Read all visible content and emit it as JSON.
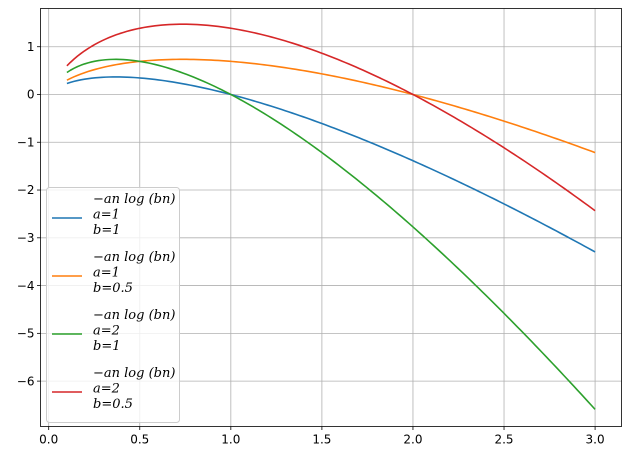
{
  "chart_data": {
    "type": "line",
    "title": "",
    "xlabel": "",
    "ylabel": "",
    "xlim": [
      -0.045,
      3.145
    ],
    "ylim": [
      -6.95,
      1.8
    ],
    "grid": true,
    "legend_placement": "lower-left",
    "x_ticks": [
      0.0,
      0.5,
      1.0,
      1.5,
      2.0,
      2.5,
      3.0
    ],
    "x_tick_labels": [
      "0.0",
      "0.5",
      "1.0",
      "1.5",
      "2.0",
      "2.5",
      "3.0"
    ],
    "y_ticks": [
      1,
      0,
      -1,
      -2,
      -3,
      -4,
      -5,
      -6
    ],
    "y_tick_labels": [
      "1",
      "0",
      "−1",
      "−2",
      "−3",
      "−4",
      "−5",
      "−6"
    ],
    "series": [
      {
        "name": [
          "−an log (bn)",
          "a=1",
          "b=1"
        ],
        "color": "#1f77b4",
        "a": 1,
        "b": 1,
        "x": [
          0.1,
          0.25,
          0.5,
          0.75,
          1.0,
          1.25,
          1.5,
          1.75,
          2.0,
          2.25,
          2.5,
          2.75,
          3.0
        ],
        "y": [
          0.23,
          0.347,
          0.347,
          0.216,
          0.0,
          -0.279,
          -0.608,
          -0.979,
          -1.386,
          -1.825,
          -2.291,
          -2.782,
          -3.296
        ]
      },
      {
        "name": [
          "−an log (bn)",
          "a=1",
          "b=0.5"
        ],
        "color": "#ff7f0e",
        "a": 1,
        "b": 0.5,
        "x": [
          0.1,
          0.25,
          0.5,
          0.75,
          1.0,
          1.25,
          1.5,
          1.75,
          2.0,
          2.25,
          2.5,
          2.75,
          3.0
        ],
        "y": [
          0.3,
          0.52,
          0.693,
          0.736,
          0.693,
          0.587,
          0.432,
          0.234,
          0.0,
          -0.265,
          -0.558,
          -0.876,
          -1.216
        ]
      },
      {
        "name": [
          "−an log (bn)",
          "a=2",
          "b=1"
        ],
        "color": "#2ca02c",
        "a": 2,
        "b": 1,
        "x": [
          0.1,
          0.25,
          0.5,
          0.75,
          1.0,
          1.25,
          1.5,
          1.75,
          2.0,
          2.25,
          2.5,
          2.75,
          3.0
        ],
        "y": [
          0.461,
          0.693,
          0.693,
          0.432,
          0.0,
          -0.558,
          -1.216,
          -1.959,
          -2.773,
          -3.649,
          -4.581,
          -5.564,
          -6.592
        ]
      },
      {
        "name": [
          "−an log (bn)",
          "a=2",
          "b=0.5"
        ],
        "color": "#d62728",
        "a": 2,
        "b": 0.5,
        "x": [
          0.1,
          0.25,
          0.5,
          0.75,
          1.0,
          1.25,
          1.5,
          1.75,
          2.0,
          2.25,
          2.5,
          2.75,
          3.0
        ],
        "y": [
          0.599,
          1.04,
          1.386,
          1.472,
          1.386,
          1.175,
          0.863,
          0.468,
          0.0,
          -0.529,
          -1.116,
          -1.752,
          -2.433
        ]
      }
    ]
  }
}
